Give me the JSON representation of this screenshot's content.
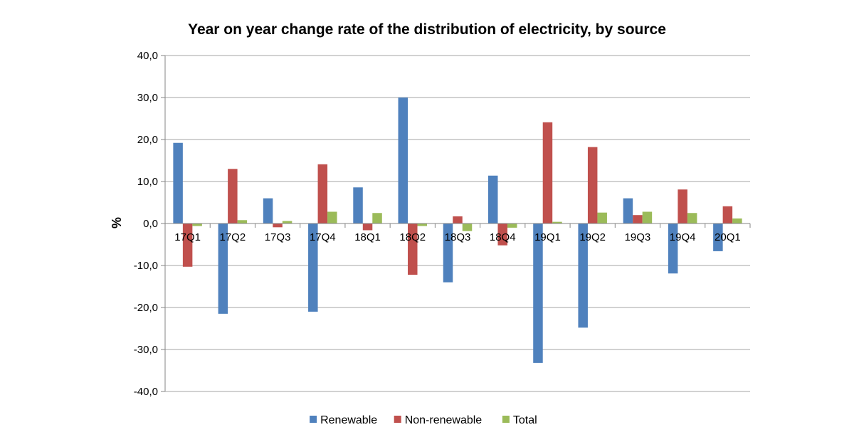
{
  "chart_data": {
    "type": "bar",
    "title": "Year on year  change rate of the distribution of electricity, by source",
    "xlabel": "",
    "ylabel": "%",
    "ylim": [
      -40,
      40
    ],
    "yticks": [
      "40,0",
      "30,0",
      "20,0",
      "10,0",
      "0,0",
      "-10,0",
      "-20,0",
      "-30,0",
      "-40,0"
    ],
    "ytick_values": [
      40,
      30,
      20,
      10,
      0,
      -10,
      -20,
      -30,
      -40
    ],
    "grid": true,
    "legend_position": "bottom",
    "categories": [
      "17Q1",
      "17Q2",
      "17Q3",
      "17Q4",
      "18Q1",
      "18Q2",
      "18Q3",
      "18Q4",
      "19Q1",
      "19Q2",
      "19Q3",
      "19Q4",
      "20Q1"
    ],
    "series": [
      {
        "name": "Renewable",
        "color": "#4f81bd",
        "values": [
          19.2,
          -21.5,
          6.0,
          -21.0,
          8.6,
          30.0,
          -14.0,
          11.4,
          -33.2,
          -24.8,
          6.0,
          -11.9,
          -6.6
        ]
      },
      {
        "name": "Non-renewable",
        "color": "#c0504d",
        "values": [
          -10.3,
          13.0,
          -0.9,
          14.1,
          -1.6,
          -12.2,
          1.7,
          -5.2,
          24.1,
          18.2,
          2.0,
          8.1,
          4.1
        ]
      },
      {
        "name": "Total",
        "color": "#9bbb59",
        "values": [
          -0.6,
          0.8,
          0.6,
          2.8,
          2.5,
          -0.6,
          -1.8,
          -1.0,
          0.4,
          2.6,
          2.8,
          2.5,
          1.2
        ]
      }
    ]
  }
}
